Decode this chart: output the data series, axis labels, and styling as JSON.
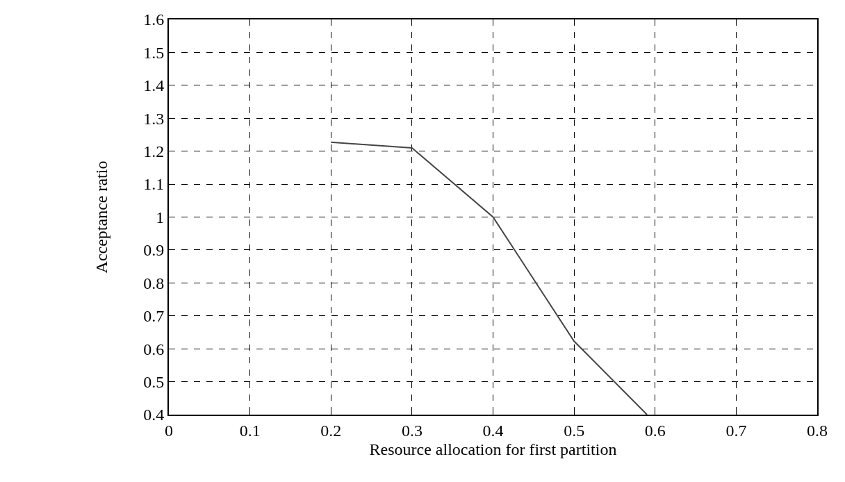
{
  "chart_data": {
    "type": "line",
    "xlabel": "Resource allocation for first partition",
    "ylabel": "Acceptance ratio",
    "x": [
      0.2,
      0.3,
      0.4,
      0.5,
      0.59
    ],
    "series": [
      {
        "color": "#444444",
        "values": [
          1.227,
          1.21,
          1.0,
          0.623,
          0.4
        ]
      }
    ],
    "xlim": [
      0,
      0.8
    ],
    "xticks": [
      0,
      0.1,
      0.2,
      0.3,
      0.4,
      0.5,
      0.6,
      0.7,
      0.8
    ],
    "ylim": [
      0.4,
      1.6
    ],
    "yticks": [
      0.4,
      0.5,
      0.6,
      0.7,
      0.8,
      0.9,
      1,
      1.1,
      1.2,
      1.3,
      1.4,
      1.5,
      1.6
    ],
    "grid": true,
    "marker": "none",
    "line_style": "solid"
  }
}
